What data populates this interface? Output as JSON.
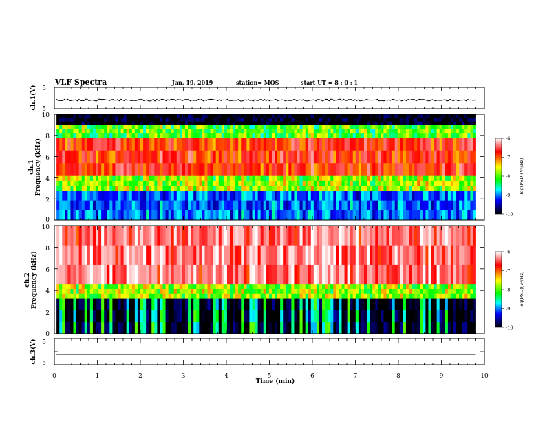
{
  "header": {
    "title": "VLF Spectra",
    "date": "Jan. 19, 2019",
    "station": "station= MOS",
    "start": "start UT =  8 : 0 : 1"
  },
  "colorbar": {
    "label": "log(PSD)(V²/Hz)",
    "ticks": [
      "-6",
      "-7",
      "-8",
      "-9",
      "-10"
    ],
    "colors": [
      "#ffffff",
      "#ff0000",
      "#ffff00",
      "#00ff00",
      "#00ffff",
      "#0000ff",
      "#000000"
    ]
  },
  "chart_data": [
    {
      "type": "line",
      "panel": "ch1-waveform",
      "ylabel": "ch.1(V)",
      "ylim": [
        -5,
        5
      ],
      "yticks": [
        "5",
        "-5"
      ],
      "xlim": [
        0,
        10
      ],
      "series": [
        {
          "x": [
            0.05,
            9.8
          ],
          "values": [
            -1,
            -1
          ]
        }
      ]
    },
    {
      "type": "heatmap",
      "panel": "ch1-spectrogram",
      "ylabel": "ch.1",
      "ylabel2": "Frequency (kHz)",
      "ylim": [
        0,
        10
      ],
      "yticks": [
        "0",
        "2",
        "4",
        "6",
        "8",
        "10"
      ],
      "xlim": [
        0,
        10
      ],
      "time_range_min": [
        0.05,
        9.8
      ],
      "bands": [
        {
          "from_khz": 0,
          "to_khz": 2.8,
          "level": -8.9
        },
        {
          "from_khz": 2.8,
          "to_khz": 4.2,
          "level": -7.8
        },
        {
          "from_khz": 4.2,
          "to_khz": 7.8,
          "level": -6.9
        },
        {
          "from_khz": 7.8,
          "to_khz": 9.0,
          "level": -8.0
        },
        {
          "from_khz": 9.0,
          "to_khz": 10,
          "level": -10
        }
      ]
    },
    {
      "type": "heatmap",
      "panel": "ch2-spectrogram",
      "ylabel": "ch.2",
      "ylabel2": "Frequency (kHz)",
      "ylim": [
        0,
        10
      ],
      "yticks": [
        "0",
        "2",
        "4",
        "6",
        "8",
        "10"
      ],
      "xlim": [
        0,
        10
      ],
      "time_range_min": [
        0.05,
        9.8
      ],
      "bands": [
        {
          "from_khz": 0,
          "to_khz": 3.3,
          "level": -10
        },
        {
          "from_khz": 3.3,
          "to_khz": 4.6,
          "level": -7.8
        },
        {
          "from_khz": 4.6,
          "to_khz": 10,
          "level": -6.6
        }
      ]
    },
    {
      "type": "line",
      "panel": "ch3-waveform",
      "ylabel": "ch.3(V)",
      "ylim": [
        -5,
        5
      ],
      "yticks": [
        "5",
        "-5"
      ],
      "xlim": [
        0,
        10
      ],
      "xlabel": "Time (min)",
      "xticks": [
        "0",
        "1",
        "2",
        "3",
        "4",
        "5",
        "6",
        "7",
        "8",
        "9",
        "10"
      ],
      "series": [
        {
          "x": [
            0.05,
            9.8
          ],
          "values": [
            -1,
            -1
          ]
        }
      ]
    }
  ]
}
